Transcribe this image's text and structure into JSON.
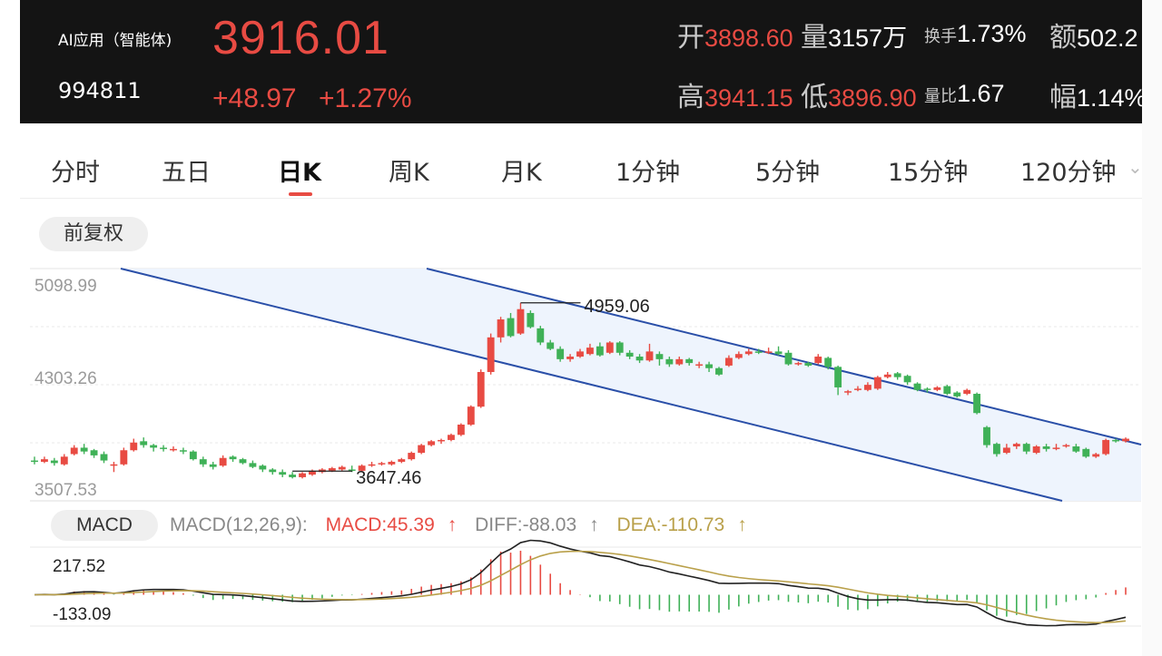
{
  "header": {
    "name": "AI应用（智能体)",
    "code": "994811",
    "price": "3916.01",
    "change": "+48.97",
    "change_pct": "+1.27%",
    "stats": {
      "open_label": "开",
      "open": "3898.60",
      "volume_label": "量",
      "volume": "3157万",
      "turnover_label": "换手",
      "turnover": "1.73%",
      "amount_label": "额",
      "amount": "502.2",
      "high_label": "高",
      "high": "3941.15",
      "low_label": "低",
      "low": "3896.90",
      "vol_ratio_label": "量比",
      "vol_ratio": "1.67",
      "amp_label": "幅",
      "amp": "1.14%"
    }
  },
  "tabs": [
    {
      "label": "分时"
    },
    {
      "label": "五日"
    },
    {
      "label": "日K",
      "active": true
    },
    {
      "label": "周K"
    },
    {
      "label": "月K"
    },
    {
      "label": "1分钟"
    },
    {
      "label": "5分钟"
    },
    {
      "label": "15分钟"
    },
    {
      "label": "120分钟"
    }
  ],
  "adjust_label": "前复权",
  "colors": {
    "up": "#e84b43",
    "down": "#3fb157",
    "channel": "#2a4fa8",
    "channel_fill": "#eef4fd",
    "diff": "#222222",
    "dea": "#b9a04a"
  },
  "chart_data": {
    "type": "candlestick",
    "y_ticks": [
      "5098.99",
      "4303.26",
      "3507.53"
    ],
    "ylim": [
      3507.53,
      5098.99
    ],
    "annotations": [
      {
        "label": "4959.06",
        "value": 4959.06
      },
      {
        "label": "3647.46",
        "value": 3647.46
      }
    ],
    "candles": [
      [
        3730,
        3720,
        3760,
        3700
      ],
      [
        3720,
        3740,
        3760,
        3710
      ],
      [
        3730,
        3710,
        3750,
        3690
      ],
      [
        3700,
        3760,
        3780,
        3690
      ],
      [
        3780,
        3830,
        3850,
        3770
      ],
      [
        3830,
        3800,
        3860,
        3780
      ],
      [
        3810,
        3770,
        3820,
        3750
      ],
      [
        3780,
        3730,
        3800,
        3710
      ],
      [
        3700,
        3700,
        3720,
        3640
      ],
      [
        3700,
        3810,
        3830,
        3690
      ],
      [
        3810,
        3870,
        3900,
        3800
      ],
      [
        3880,
        3850,
        3910,
        3830
      ],
      [
        3850,
        3830,
        3860,
        3800
      ],
      [
        3830,
        3820,
        3850,
        3800
      ],
      [
        3820,
        3820,
        3840,
        3800
      ],
      [
        3810,
        3800,
        3830,
        3780
      ],
      [
        3800,
        3740,
        3810,
        3730
      ],
      [
        3740,
        3700,
        3760,
        3680
      ],
      [
        3700,
        3680,
        3720,
        3660
      ],
      [
        3690,
        3750,
        3770,
        3680
      ],
      [
        3760,
        3740,
        3770,
        3720
      ],
      [
        3740,
        3710,
        3750,
        3700
      ],
      [
        3710,
        3680,
        3730,
        3670
      ],
      [
        3690,
        3660,
        3700,
        3640
      ],
      [
        3660,
        3640,
        3670,
        3620
      ],
      [
        3640,
        3620,
        3660,
        3600
      ],
      [
        3620,
        3600,
        3640,
        3590
      ],
      [
        3600,
        3630,
        3640,
        3590
      ],
      [
        3620,
        3650,
        3660,
        3610
      ],
      [
        3640,
        3660,
        3670,
        3630
      ],
      [
        3650,
        3670,
        3680,
        3640
      ],
      [
        3660,
        3680,
        3690,
        3650
      ],
      [
        3660,
        3650,
        3690,
        3640
      ],
      [
        3650,
        3690,
        3700,
        3640
      ],
      [
        3690,
        3700,
        3720,
        3680
      ],
      [
        3700,
        3710,
        3720,
        3690
      ],
      [
        3700,
        3720,
        3730,
        3690
      ],
      [
        3720,
        3740,
        3750,
        3710
      ],
      [
        3740,
        3790,
        3800,
        3730
      ],
      [
        3790,
        3850,
        3860,
        3780
      ],
      [
        3850,
        3880,
        3890,
        3840
      ],
      [
        3880,
        3890,
        3900,
        3860
      ],
      [
        3890,
        3930,
        3940,
        3880
      ],
      [
        3930,
        4010,
        4020,
        3920
      ],
      [
        4010,
        4150,
        4160,
        4000
      ],
      [
        4150,
        4420,
        4440,
        4140
      ],
      [
        4420,
        4690,
        4720,
        4400
      ],
      [
        4690,
        4830,
        4850,
        4650
      ],
      [
        4840,
        4700,
        4880,
        4690
      ],
      [
        4720,
        4910,
        4959,
        4710
      ],
      [
        4880,
        4770,
        4900,
        4760
      ],
      [
        4760,
        4650,
        4780,
        4630
      ],
      [
        4650,
        4600,
        4670,
        4590
      ],
      [
        4600,
        4520,
        4620,
        4500
      ],
      [
        4520,
        4540,
        4560,
        4500
      ],
      [
        4540,
        4580,
        4600,
        4530
      ],
      [
        4560,
        4610,
        4640,
        4550
      ],
      [
        4620,
        4550,
        4650,
        4540
      ],
      [
        4570,
        4650,
        4660,
        4560
      ],
      [
        4650,
        4570,
        4660,
        4550
      ],
      [
        4570,
        4540,
        4590,
        4520
      ],
      [
        4540,
        4510,
        4560,
        4490
      ],
      [
        4510,
        4580,
        4640,
        4500
      ],
      [
        4560,
        4520,
        4580,
        4470
      ],
      [
        4520,
        4480,
        4540,
        4460
      ],
      [
        4480,
        4520,
        4540,
        4470
      ],
      [
        4520,
        4490,
        4530,
        4470
      ],
      [
        4470,
        4480,
        4500,
        4450
      ],
      [
        4480,
        4450,
        4500,
        4420
      ],
      [
        4450,
        4400,
        4460,
        4390
      ],
      [
        4470,
        4530,
        4550,
        4460
      ],
      [
        4530,
        4560,
        4580,
        4520
      ],
      [
        4560,
        4580,
        4600,
        4550
      ],
      [
        4580,
        4570,
        4600,
        4560
      ],
      [
        4570,
        4580,
        4610,
        4560
      ],
      [
        4580,
        4560,
        4620,
        4550
      ],
      [
        4570,
        4480,
        4590,
        4470
      ],
      [
        4480,
        4490,
        4500,
        4470
      ],
      [
        4490,
        4470,
        4500,
        4460
      ],
      [
        4490,
        4540,
        4560,
        4480
      ],
      [
        4530,
        4460,
        4540,
        4440
      ],
      [
        4460,
        4300,
        4470,
        4240
      ],
      [
        4260,
        4270,
        4280,
        4240
      ],
      [
        4280,
        4290,
        4310,
        4270
      ],
      [
        4280,
        4320,
        4340,
        4270
      ],
      [
        4290,
        4380,
        4390,
        4280
      ],
      [
        4380,
        4400,
        4420,
        4370
      ],
      [
        4410,
        4380,
        4420,
        4360
      ],
      [
        4390,
        4340,
        4400,
        4320
      ],
      [
        4330,
        4280,
        4340,
        4270
      ],
      [
        4290,
        4280,
        4300,
        4260
      ],
      [
        4280,
        4300,
        4310,
        4270
      ],
      [
        4310,
        4250,
        4320,
        4240
      ],
      [
        4260,
        4230,
        4270,
        4220
      ],
      [
        4250,
        4280,
        4290,
        4240
      ],
      [
        4250,
        4100,
        4260,
        4090
      ],
      [
        3990,
        3850,
        4000,
        3830
      ],
      [
        3860,
        3780,
        3870,
        3760
      ],
      [
        3790,
        3830,
        3860,
        3780
      ],
      [
        3840,
        3860,
        3870,
        3820
      ],
      [
        3860,
        3800,
        3870,
        3780
      ],
      [
        3790,
        3840,
        3850,
        3780
      ],
      [
        3840,
        3820,
        3860,
        3800
      ],
      [
        3830,
        3830,
        3860,
        3810
      ],
      [
        3840,
        3850,
        3860,
        3830
      ],
      [
        3840,
        3800,
        3860,
        3790
      ],
      [
        3820,
        3760,
        3830,
        3750
      ],
      [
        3760,
        3780,
        3790,
        3750
      ],
      [
        3780,
        3890,
        3900,
        3770
      ],
      [
        3890,
        3880,
        3900,
        3870
      ],
      [
        3880,
        3900,
        3910,
        3870
      ]
    ],
    "macd": {
      "title": "MACD(12,26,9):",
      "macd_label": "MACD:45.39",
      "diff_label": "DIFF:-88.03",
      "dea_label": "DEA:-110.73",
      "y_ticks": [
        "217.52",
        "-133.09"
      ],
      "ylim": [
        -133.09,
        217.52
      ]
    }
  }
}
